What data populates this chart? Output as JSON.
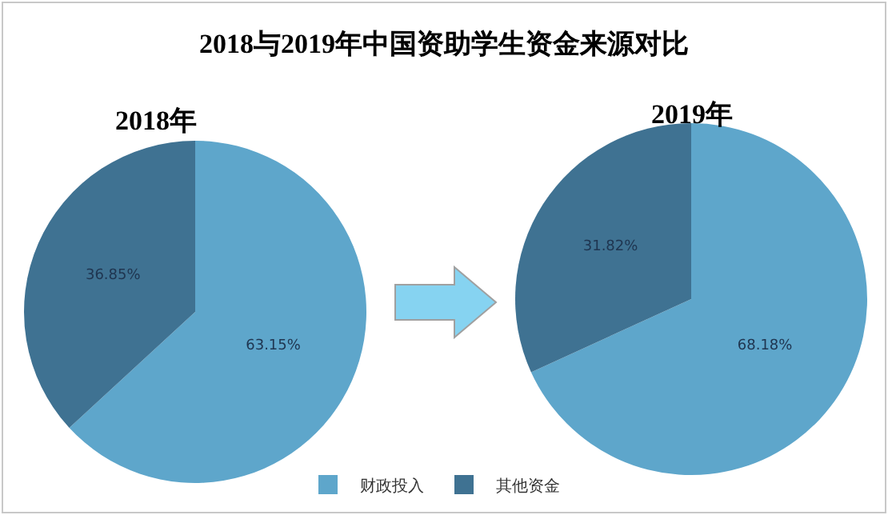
{
  "chart_data": {
    "type": "pie",
    "title": "2018与2019年中国资助学生资金来源对比",
    "categories": [
      "财政投入",
      "其他资金"
    ],
    "colors": [
      "#5ea6cb",
      "#3f7292"
    ],
    "legend": "bottom",
    "series": [
      {
        "name": "2018年",
        "values": [
          63.15,
          36.85
        ],
        "value_labels": [
          "63.15%",
          "36.85%"
        ]
      },
      {
        "name": "2019年",
        "values": [
          68.18,
          31.82
        ],
        "value_labels": [
          "68.18%",
          "31.82%"
        ]
      }
    ]
  }
}
